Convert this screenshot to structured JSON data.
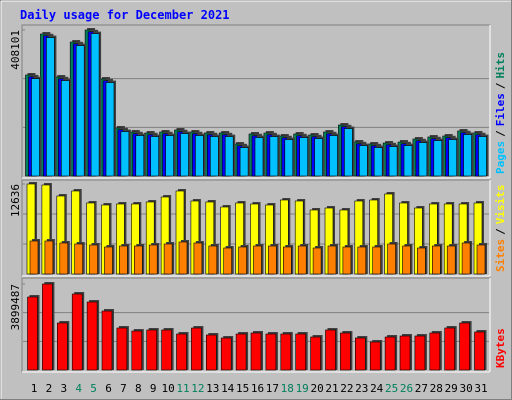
{
  "chart_data": [
    {
      "type": "bar",
      "title": "Daily usage for December 2021",
      "ylim": [
        0,
        408101
      ],
      "yticks": [
        408101
      ],
      "legend_separator": "/",
      "series": [
        {
          "name": "Pages",
          "color": "#00c0ff",
          "values": [
            272000,
            386900,
            266700,
            364500,
            398000,
            261100,
            124200,
            113000,
            110200,
            113000,
            118600,
            113000,
            110200,
            110200,
            79400,
            107400,
            110200,
            101800,
            107400,
            104600,
            113000,
            132500,
            85000,
            79400,
            82200,
            85000,
            93400,
            99000,
            101800,
            115800,
            110200
          ]
        },
        {
          "name": "Files",
          "color": "#0000ff",
          "values": [
            277000,
            391900,
            271700,
            369500,
            403000,
            266100,
            129200,
            118000,
            115200,
            118000,
            123600,
            118000,
            115200,
            115200,
            84400,
            112400,
            115200,
            106800,
            112400,
            109600,
            118000,
            137500,
            90000,
            84400,
            87200,
            90000,
            98400,
            104000,
            106800,
            120800,
            115200
          ]
        },
        {
          "name": "Hits",
          "color": "#00805c",
          "values": [
            282300,
            396900,
            276700,
            374500,
            408101,
            271100,
            134200,
            123000,
            120200,
            123000,
            128600,
            123000,
            120200,
            120200,
            89400,
            117400,
            120200,
            111800,
            117400,
            114600,
            123000,
            142500,
            95000,
            89400,
            92200,
            95000,
            103400,
            109000,
            111800,
            125800,
            120200
          ]
        }
      ]
    },
    {
      "type": "bar",
      "ylim": [
        0,
        12636
      ],
      "yticks": [
        12636
      ],
      "legend_separator": "/",
      "series": [
        {
          "name": "Sites",
          "color": "#ff8000",
          "values": [
            4633,
            4633,
            4352,
            4212,
            4072,
            3791,
            3931,
            3931,
            4072,
            4212,
            4493,
            4352,
            3931,
            3650,
            3791,
            3931,
            3931,
            3791,
            3931,
            3650,
            3931,
            3791,
            3791,
            3791,
            4212,
            3931,
            3650,
            3931,
            3931,
            4352,
            4072
          ]
        },
        {
          "name": "Visits",
          "color": "#ffff00",
          "values": [
            12636,
            12496,
            10951,
            11653,
            9968,
            9688,
            9828,
            9828,
            10109,
            10811,
            11653,
            10249,
            10109,
            9407,
            9968,
            9828,
            9688,
            10390,
            10249,
            8986,
            9266,
            8986,
            10249,
            10390,
            11232,
            9968,
            9266,
            9828,
            9828,
            9828,
            9968
          ]
        }
      ]
    },
    {
      "type": "bar",
      "ylim": [
        0,
        3899487
      ],
      "yticks": [
        3899487
      ],
      "categories": [
        "1",
        "2",
        "3",
        "4",
        "5",
        "6",
        "7",
        "8",
        "9",
        "10",
        "11",
        "12",
        "13",
        "14",
        "15",
        "16",
        "17",
        "18",
        "19",
        "20",
        "21",
        "22",
        "23",
        "24",
        "25",
        "26",
        "27",
        "28",
        "29",
        "30",
        "31"
      ],
      "highlight_categories": [
        "4",
        "5",
        "11",
        "12",
        "18",
        "19",
        "25",
        "26"
      ],
      "highlight_color": "#00805c",
      "label_color": "#000000",
      "series": [
        {
          "name": "KBytes",
          "color": "#ff0000",
          "values": [
            3310000,
            3899487,
            2131000,
            3446000,
            3083000,
            2675000,
            1904000,
            1768000,
            1814000,
            1814000,
            1632000,
            1904000,
            1587000,
            1451000,
            1632000,
            1678000,
            1632000,
            1632000,
            1632000,
            1496000,
            1814000,
            1678000,
            1451000,
            1270000,
            1496000,
            1542000,
            1542000,
            1678000,
            1904000,
            2131000,
            1723000
          ]
        }
      ]
    }
  ]
}
